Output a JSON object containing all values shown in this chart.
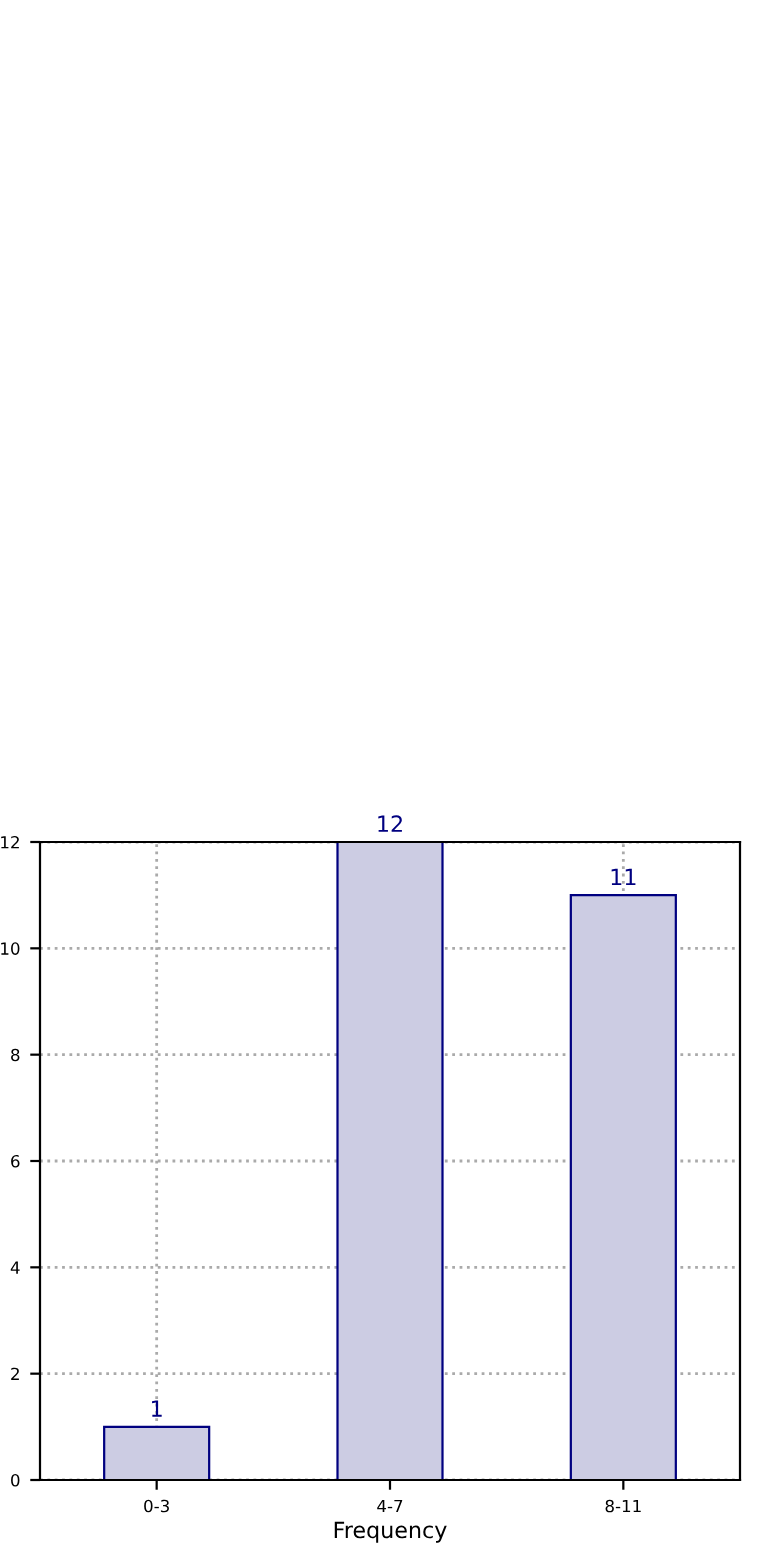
{
  "chart_data": {
    "type": "bar",
    "xlabel": "Frequency",
    "categories": [
      "0-3",
      "4-7",
      "8-11"
    ],
    "series": [
      {
        "color": "#cccce3",
        "values": [
          1,
          12,
          11
        ]
      }
    ],
    "ylim": [
      0,
      12
    ],
    "yticks": [
      0,
      2,
      4,
      6,
      8,
      10,
      12
    ],
    "grid": true,
    "data_labels": true
  }
}
